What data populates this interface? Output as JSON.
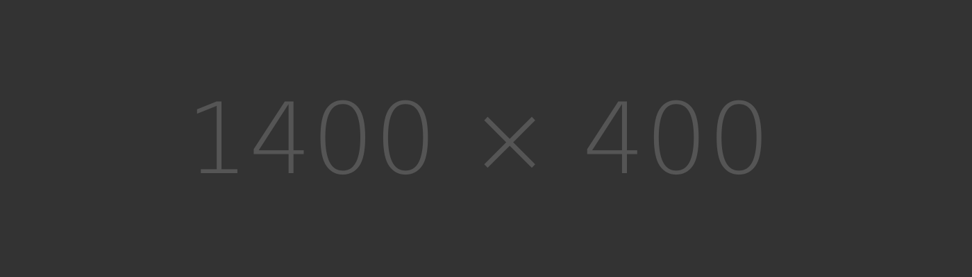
{
  "placeholder": {
    "label": "1400 × 400",
    "background_color": "#333333",
    "text_color": "#555555"
  }
}
